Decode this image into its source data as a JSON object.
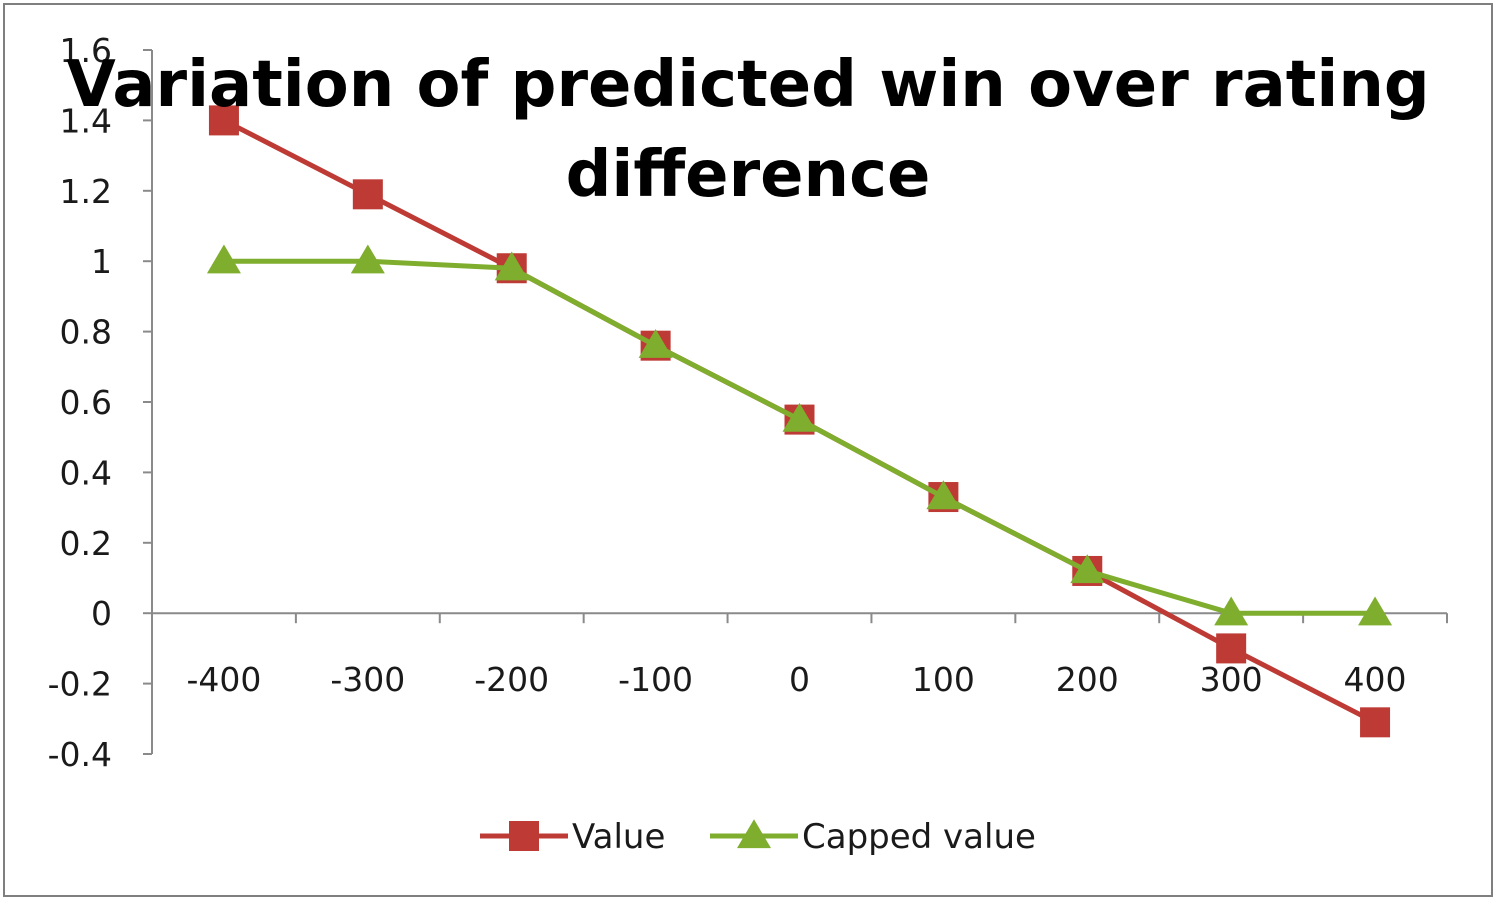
{
  "chart_data": {
    "type": "line",
    "title_lines": [
      "Variation of predicted win over rating",
      "difference"
    ],
    "categories": [
      "-400",
      "-300",
      "-200",
      "-100",
      "0",
      "100",
      "200",
      "300",
      "400"
    ],
    "x": [
      -400,
      -300,
      -200,
      -100,
      0,
      100,
      200,
      300,
      400
    ],
    "y_ticks": [
      "1.6",
      "1.4",
      "1.2",
      "1",
      "0.8",
      "0.6",
      "0.4",
      "0.2",
      "0",
      "-0.2",
      "-0.4"
    ],
    "ylim": [
      -0.4,
      1.6
    ],
    "grid": false,
    "legend_position": "bottom",
    "series": [
      {
        "name": "Value",
        "color": "#be3a35",
        "marker": "square",
        "values": [
          1.4,
          1.19,
          0.98,
          0.76,
          0.55,
          0.33,
          0.12,
          -0.1,
          -0.31
        ]
      },
      {
        "name": "Capped value",
        "color": "#7fae2e",
        "marker": "triangle",
        "values": [
          1.0,
          1.0,
          0.98,
          0.76,
          0.55,
          0.33,
          0.12,
          0.0,
          0.0
        ]
      }
    ]
  }
}
